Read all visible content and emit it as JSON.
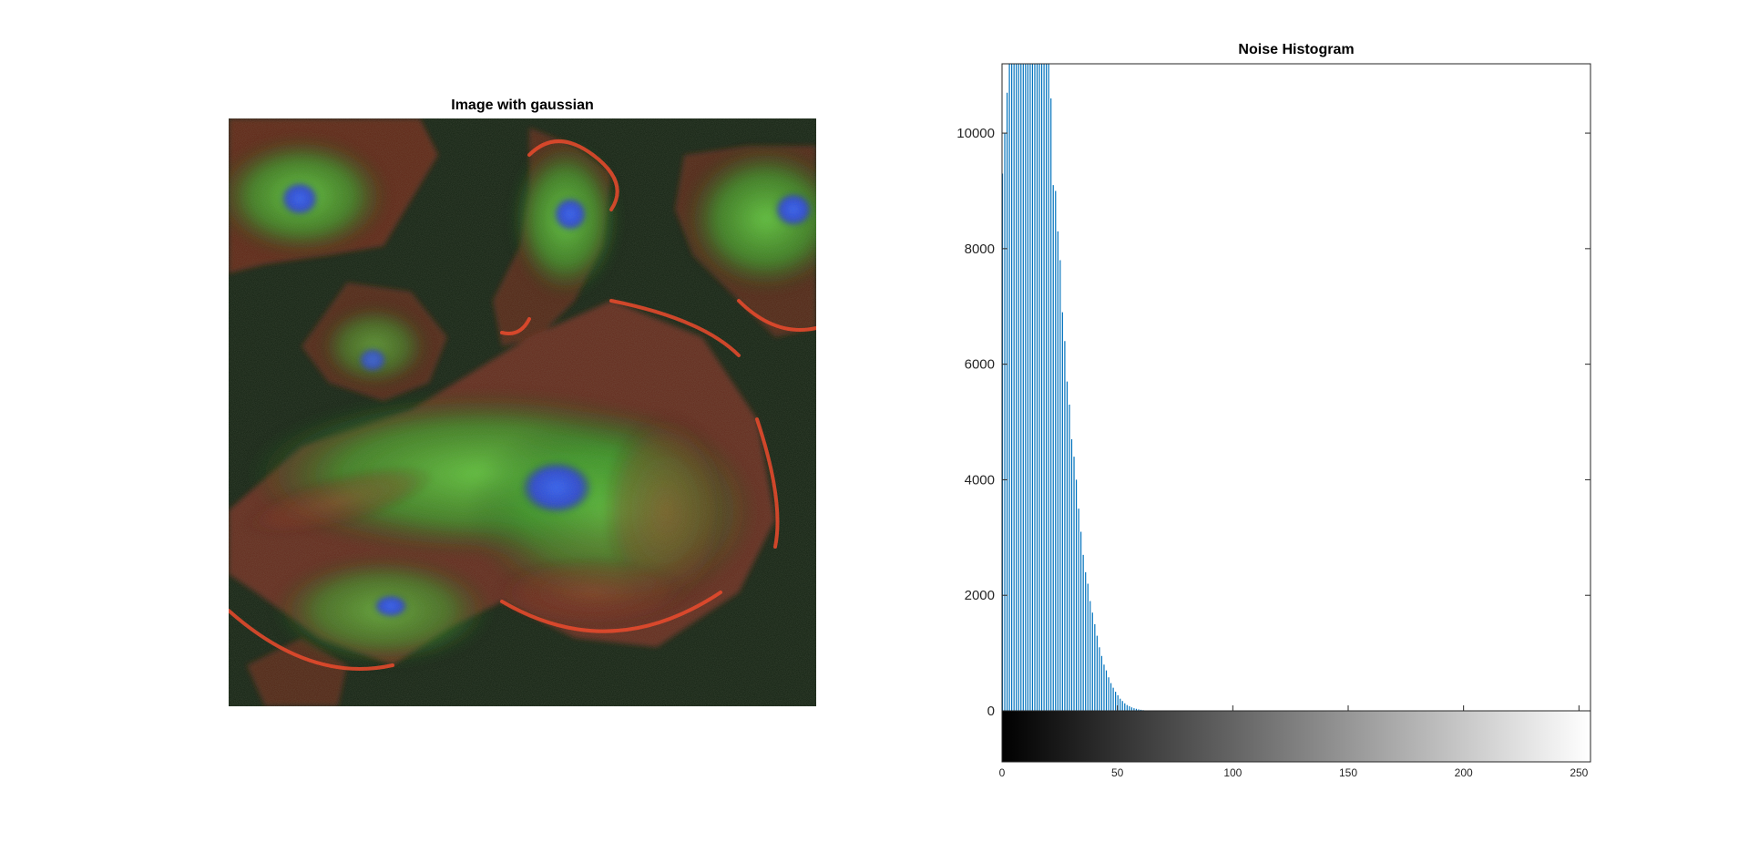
{
  "figure": {
    "left_panel": {
      "title": "Image with gaussian",
      "image_description_icon": "fluorescence-microscopy-image"
    },
    "right_panel": {
      "title": "Noise Histogram"
    }
  },
  "chart_data": [
    {
      "type": "image",
      "title": "Image with gaussian"
    },
    {
      "type": "bar",
      "title": "Noise Histogram",
      "xlabel": "",
      "ylabel": "",
      "xlim": [
        0,
        255
      ],
      "ylim": [
        0,
        11200
      ],
      "grid": false,
      "yticks": [
        0,
        2000,
        4000,
        6000,
        8000,
        10000
      ],
      "xticks": [
        0,
        50,
        100,
        150,
        200,
        250
      ],
      "colorbar": "grayscale",
      "bar_color": "#0072bd",
      "x": [
        0,
        1,
        2,
        3,
        4,
        5,
        6,
        7,
        8,
        9,
        10,
        11,
        12,
        13,
        14,
        15,
        16,
        17,
        18,
        19,
        20,
        21,
        22,
        23,
        24,
        25,
        26,
        27,
        28,
        29,
        30,
        31,
        32,
        33,
        34,
        35,
        36,
        37,
        38,
        39,
        40,
        41,
        42,
        43,
        44,
        45,
        46,
        47,
        48,
        49,
        50,
        51,
        52,
        53,
        54,
        55,
        56,
        57,
        58,
        59,
        60,
        61,
        62,
        63,
        64,
        65,
        66,
        67,
        68,
        69,
        70
      ],
      "values": [
        9300,
        10000,
        10700,
        11200,
        11200,
        11200,
        11200,
        11200,
        11200,
        11200,
        11200,
        11200,
        11200,
        11200,
        11200,
        11200,
        11200,
        11200,
        11200,
        11200,
        11200,
        10600,
        9100,
        9000,
        8300,
        7800,
        6900,
        6400,
        5700,
        5300,
        4700,
        4400,
        4000,
        3500,
        3100,
        2700,
        2400,
        2200,
        1900,
        1700,
        1500,
        1300,
        1100,
        950,
        800,
        700,
        580,
        480,
        400,
        330,
        270,
        210,
        170,
        130,
        100,
        80,
        60,
        45,
        35,
        25,
        18,
        12,
        8,
        6,
        4,
        3,
        2,
        1,
        1,
        0,
        0
      ]
    }
  ]
}
